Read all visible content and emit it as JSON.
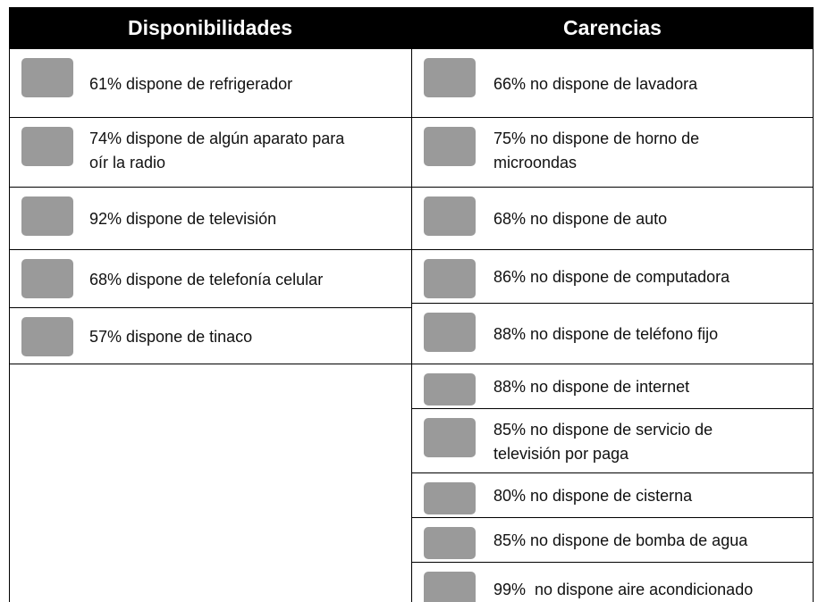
{
  "table": {
    "headers": [
      "Disponibilidades",
      "Carencias"
    ],
    "left": [
      [
        "61% dispone de refrigerador"
      ],
      [
        "74% dispone de algún aparato para",
        "oír la radio"
      ],
      [
        "92% dispone de televisión"
      ],
      [
        "68% dispone de telefonía celular"
      ],
      [
        "57% dispone de tinaco"
      ]
    ],
    "right": [
      [
        "66% no dispone de lavadora"
      ],
      [
        "75% no dispone de horno de",
        "microondas"
      ],
      [
        "68% no dispone de auto"
      ],
      [
        "86% no dispone de computadora"
      ],
      [
        "88% no dispone de teléfono fijo"
      ],
      [
        "88% no dispone de internet"
      ],
      [
        "85% no dispone de servicio de",
        "televisión por paga"
      ],
      [
        "80% no dispone de cisterna"
      ],
      [
        "85% no dispone de bomba de agua"
      ],
      [
        "99%  no dispone aire acondicionado"
      ]
    ]
  }
}
